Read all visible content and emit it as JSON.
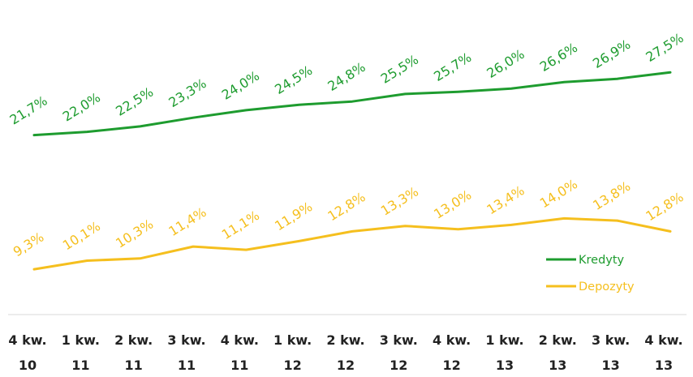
{
  "chart_data": {
    "type": "line",
    "categories": [
      [
        "4 kw.",
        "10"
      ],
      [
        "1 kw.",
        "11"
      ],
      [
        "2 kw.",
        "11"
      ],
      [
        "3 kw.",
        "11"
      ],
      [
        "4 kw.",
        "11"
      ],
      [
        "1 kw.",
        "12"
      ],
      [
        "2 kw.",
        "12"
      ],
      [
        "3 kw.",
        "12"
      ],
      [
        "4 kw.",
        "12"
      ],
      [
        "1 kw.",
        "13"
      ],
      [
        "2 kw.",
        "13"
      ],
      [
        "3 kw.",
        "13"
      ],
      [
        "4 kw.",
        "13"
      ]
    ],
    "series": [
      {
        "name": "Kredyty",
        "color": "#1e9c2f",
        "values": [
          21.7,
          22.0,
          22.5,
          23.3,
          24.0,
          24.5,
          24.8,
          25.5,
          25.7,
          26.0,
          26.6,
          26.9,
          27.5
        ],
        "labels": [
          "21,7%",
          "22,0%",
          "22,5%",
          "23,3%",
          "24,0%",
          "24,5%",
          "24,8%",
          "25,5%",
          "25,7%",
          "26,0%",
          "26,6%",
          "26,9%",
          "27,5%"
        ]
      },
      {
        "name": "Depozyty",
        "color": "#f5bf1e",
        "values": [
          9.3,
          10.1,
          10.3,
          11.4,
          11.1,
          11.9,
          12.8,
          13.3,
          13.0,
          13.4,
          14.0,
          13.8,
          12.8
        ],
        "labels": [
          "9,3%",
          "10,1%",
          "10,3%",
          "11,4%",
          "11,1%",
          "11,9%",
          "12,8%",
          "13,3%",
          "13,0%",
          "13,4%",
          "14,0%",
          "13,8%",
          "12,8%"
        ]
      }
    ],
    "legend": {
      "position": "right"
    }
  }
}
